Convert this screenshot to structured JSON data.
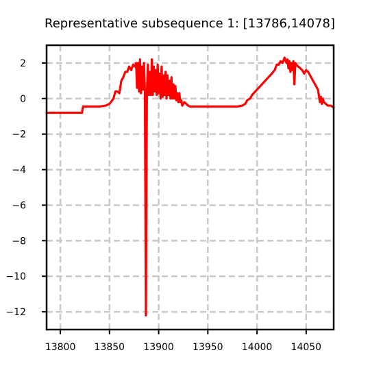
{
  "chart_data": {
    "type": "line",
    "title": "Representative subsequence 1: [13786,14078]",
    "xlabel": "",
    "ylabel": "",
    "xlim": [
      13786,
      14078
    ],
    "ylim": [
      -13,
      3
    ],
    "xticks": [
      13800,
      13850,
      13900,
      13950,
      14000,
      14050
    ],
    "yticks": [
      2,
      0,
      -2,
      -4,
      -6,
      -8,
      -10,
      -12
    ],
    "ytick_labels": [
      "2",
      "0",
      "−2",
      "−4",
      "−6",
      "−8",
      "−10",
      "−12"
    ],
    "grid": true,
    "series": [
      {
        "color": "#ff0000",
        "x": [
          13786,
          13800,
          13810,
          13822,
          13823,
          13830,
          13840,
          13846,
          13850,
          13854,
          13856,
          13858,
          13860,
          13862,
          13864,
          13866,
          13868,
          13870,
          13872,
          13874,
          13876,
          13877,
          13878,
          13879,
          13880,
          13881,
          13882,
          13883,
          13884,
          13885,
          13886,
          13887,
          13888,
          13889,
          13890,
          13891,
          13892,
          13893,
          13894,
          13895,
          13896,
          13897,
          13898,
          13899,
          13900,
          13901,
          13902,
          13903,
          13904,
          13905,
          13906,
          13907,
          13908,
          13909,
          13910,
          13911,
          13912,
          13913,
          13914,
          13915,
          13916,
          13917,
          13918,
          13919,
          13920,
          13921,
          13922,
          13923,
          13924,
          13926,
          13928,
          13930,
          13932,
          13935,
          13940,
          13950,
          13960,
          13970,
          13980,
          13985,
          13988,
          13990,
          13993,
          13995,
          14000,
          14005,
          14010,
          14015,
          14018,
          14020,
          14022,
          14024,
          14026,
          14028,
          14030,
          14031,
          14032,
          14033,
          14034,
          14035,
          14036,
          14037,
          14038,
          14039,
          14040,
          14042,
          14044,
          14046,
          14048,
          14050,
          14052,
          14054,
          14056,
          14058,
          14060,
          14062,
          14064,
          14065,
          14066,
          14067,
          14068,
          14070,
          14072,
          14075,
          14078
        ],
        "y": [
          -0.8,
          -0.8,
          -0.8,
          -0.8,
          -0.45,
          -0.45,
          -0.45,
          -0.4,
          -0.3,
          0.0,
          0.4,
          0.4,
          0.3,
          1.0,
          1.2,
          1.5,
          1.5,
          1.8,
          1.6,
          1.9,
          1.8,
          2.0,
          0.6,
          2.0,
          0.4,
          2.2,
          0.3,
          1.8,
          0.5,
          2.0,
          0.4,
          -12.2,
          0.3,
          1.9,
          0.2,
          1.5,
          0.2,
          2.2,
          0.2,
          1.8,
          0.4,
          1.6,
          0.2,
          1.9,
          0.3,
          1.4,
          0.0,
          1.8,
          0.1,
          1.3,
          0.2,
          1.5,
          0.0,
          1.3,
          0.2,
          1.0,
          0.0,
          1.2,
          0.0,
          0.8,
          0.0,
          0.7,
          -0.1,
          0.3,
          -0.2,
          0.3,
          -0.2,
          -0.1,
          -0.4,
          -0.2,
          -0.3,
          -0.4,
          -0.45,
          -0.45,
          -0.45,
          -0.45,
          -0.45,
          -0.45,
          -0.45,
          -0.4,
          -0.3,
          -0.1,
          0.0,
          0.2,
          0.5,
          0.8,
          1.1,
          1.4,
          1.6,
          1.9,
          1.9,
          2.1,
          2.0,
          2.3,
          2.0,
          2.2,
          1.7,
          2.1,
          1.5,
          2.0,
          1.6,
          2.1,
          0.8,
          2.0,
          1.9,
          1.8,
          1.7,
          1.6,
          1.4,
          1.6,
          1.5,
          1.3,
          1.1,
          0.9,
          0.7,
          0.5,
          -0.2,
          0.1,
          -0.3,
          0.0,
          -0.2,
          -0.3,
          -0.4,
          -0.4,
          -0.5
        ]
      }
    ]
  }
}
